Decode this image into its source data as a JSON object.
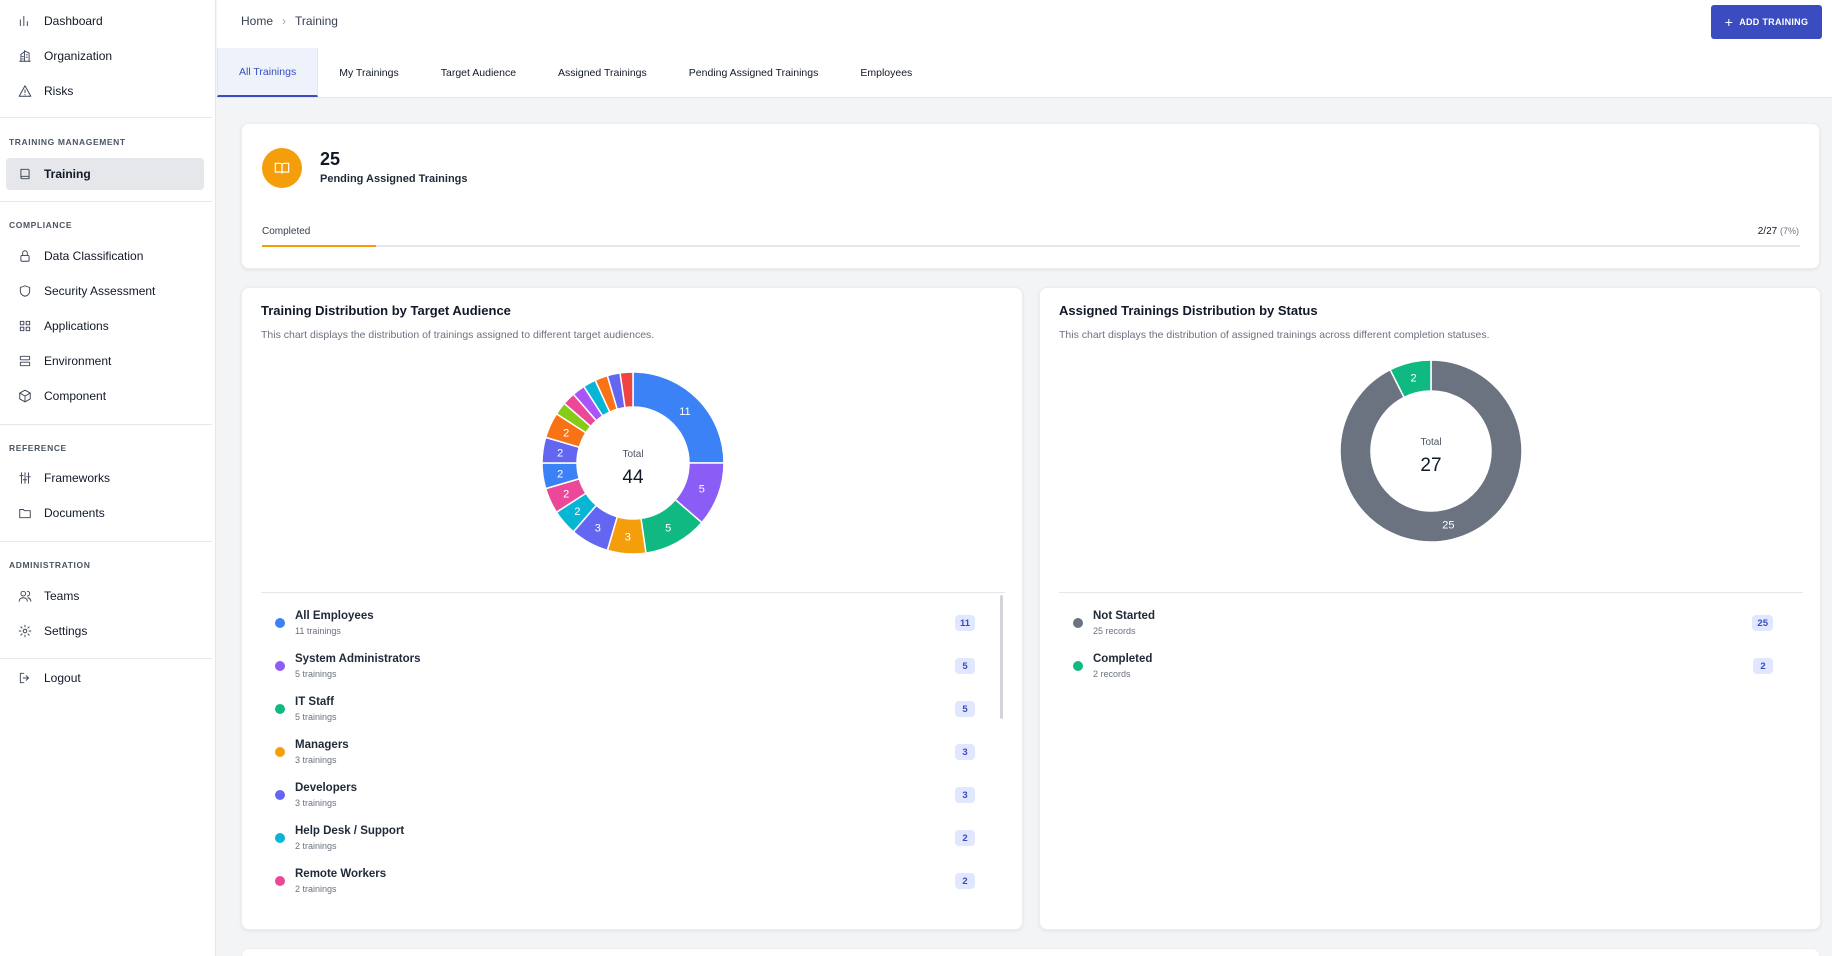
{
  "sidebar": {
    "top_items": [
      {
        "label": "Dashboard",
        "icon": "bar-chart-icon"
      },
      {
        "label": "Organization",
        "icon": "building-icon"
      },
      {
        "label": "Risks",
        "icon": "warning-icon"
      }
    ],
    "sections": [
      {
        "title": "TRAINING MANAGEMENT",
        "items": [
          {
            "label": "Training",
            "icon": "book-icon",
            "active": true
          }
        ]
      },
      {
        "title": "COMPLIANCE",
        "items": [
          {
            "label": "Data Classification",
            "icon": "lock-icon"
          },
          {
            "label": "Security Assessment",
            "icon": "shield-icon"
          },
          {
            "label": "Applications",
            "icon": "grid-icon"
          },
          {
            "label": "Environment",
            "icon": "server-icon"
          },
          {
            "label": "Component",
            "icon": "cube-icon"
          }
        ]
      },
      {
        "title": "REFERENCE",
        "items": [
          {
            "label": "Frameworks",
            "icon": "sliders-icon"
          },
          {
            "label": "Documents",
            "icon": "folder-icon"
          }
        ]
      },
      {
        "title": "ADMINISTRATION",
        "items": [
          {
            "label": "Teams",
            "icon": "users-icon"
          },
          {
            "label": "Settings",
            "icon": "gear-icon"
          }
        ]
      }
    ],
    "logout_label": "Logout"
  },
  "header": {
    "breadcrumb": [
      "Home",
      "Training"
    ],
    "add_button_label": "ADD TRAINING",
    "tabs": [
      "All Trainings",
      "My Trainings",
      "Target Audience",
      "Assigned Trainings",
      "Pending Assigned Trainings",
      "Employees"
    ],
    "active_tab": 0
  },
  "summary": {
    "value": "25",
    "label": "Pending Assigned Trainings",
    "progress_label": "Completed",
    "progress_text": "2/27",
    "progress_pct_text": "(7%)",
    "progress_fraction": 0.074,
    "accent": "#f59e0b"
  },
  "chart_data": [
    {
      "type": "pie",
      "title": "Training Distribution by Target Audience",
      "subtitle": "This chart displays the distribution of trainings assigned to different target audiences.",
      "center_label": "Total",
      "center_value": "44",
      "legend_unit": "trainings",
      "slices": [
        {
          "name": "All Employees",
          "value": 11,
          "color": "#3b82f6"
        },
        {
          "name": "System Administrators",
          "value": 5,
          "color": "#8b5cf6"
        },
        {
          "name": "IT Staff",
          "value": 5,
          "color": "#10b981"
        },
        {
          "name": "Managers",
          "value": 3,
          "color": "#f59e0b"
        },
        {
          "name": "Developers",
          "value": 3,
          "color": "#6366f1"
        },
        {
          "name": "Help Desk / Support",
          "value": 2,
          "color": "#06b6d4"
        },
        {
          "name": "Remote Workers",
          "value": 2,
          "color": "#ec4899"
        },
        {
          "name": "",
          "value": 2,
          "color": "#3b82f6"
        },
        {
          "name": "",
          "value": 2,
          "color": "#6366f1"
        },
        {
          "name": "",
          "value": 2,
          "color": "#f97316"
        },
        {
          "name": "",
          "value": 1,
          "color": "#84cc16"
        },
        {
          "name": "",
          "value": 1,
          "color": "#ec4899"
        },
        {
          "name": "",
          "value": 1,
          "color": "#a855f7"
        },
        {
          "name": "",
          "value": 1,
          "color": "#06b6d4"
        },
        {
          "name": "",
          "value": 1,
          "color": "#f97316"
        },
        {
          "name": "",
          "value": 1,
          "color": "#6366f1"
        },
        {
          "name": "",
          "value": 1,
          "color": "#ef4444"
        }
      ]
    },
    {
      "type": "pie",
      "title": "Assigned Trainings Distribution by Status",
      "subtitle": "This chart displays the distribution of assigned trainings across different completion statuses.",
      "center_label": "Total",
      "center_value": "27",
      "legend_unit": "records",
      "slices": [
        {
          "name": "Not Started",
          "value": 25,
          "color": "#6b7280"
        },
        {
          "name": "Completed",
          "value": 2,
          "color": "#10b981"
        }
      ]
    }
  ]
}
